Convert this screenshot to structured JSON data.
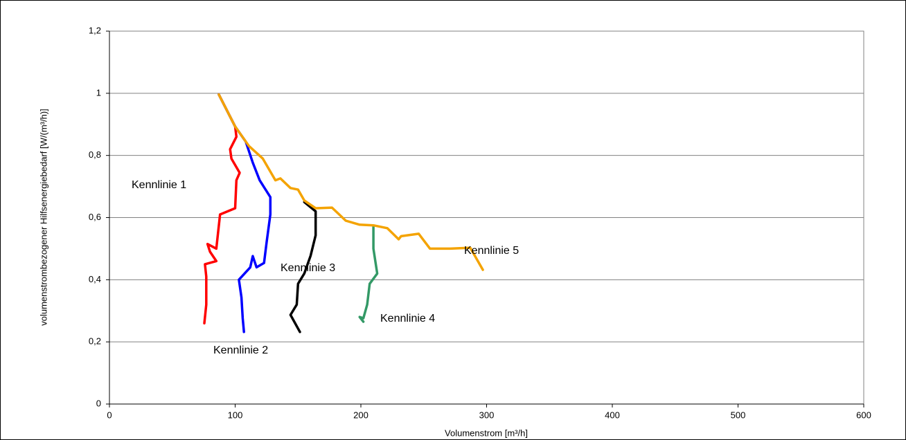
{
  "chart_data": {
    "type": "line",
    "xlabel": "Volumenstrom [m³/h]",
    "ylabel": "volumenstrombezogener Hilfsenergiebedarf [W/(m³/h)]",
    "xlim": [
      0,
      600
    ],
    "xticks": [
      0,
      100,
      200,
      300,
      400,
      500,
      600
    ],
    "ylim": [
      0,
      1.2
    ],
    "yticks": [
      0,
      {
        "value": 0.2,
        "label": "0,2"
      },
      {
        "value": 0.4,
        "label": "0,4"
      },
      {
        "value": 0.6,
        "label": "0,6"
      },
      {
        "value": 0.8,
        "label": "0,8"
      },
      1,
      {
        "value": 1.2,
        "label": "1,2"
      }
    ],
    "grid": true,
    "annotations": [
      "Kennlinie 1",
      "Kennlinie 2",
      "Kennlinie 3",
      "Kennlinie 4",
      "Kennlinie 5"
    ],
    "series": [
      {
        "name": "Kennlinie 1",
        "color": "#ff0000",
        "x": [
          87,
          100,
          101,
          96,
          97,
          103.6,
          101,
          100,
          88,
          85,
          78,
          80,
          85,
          76,
          77,
          77,
          75.5
        ],
        "values": [
          0.996,
          0.893,
          0.86,
          0.82,
          0.79,
          0.744,
          0.72,
          0.63,
          0.61,
          0.5,
          0.515,
          0.49,
          0.46,
          0.45,
          0.41,
          0.32,
          0.26
        ]
      },
      {
        "name": "Kennlinie 2",
        "color": "#0000ff",
        "x": [
          87,
          100,
          108.5,
          114,
          119.5,
          128,
          128,
          125,
          123,
          117,
          114,
          112,
          103,
          105,
          106,
          107
        ],
        "values": [
          0.996,
          0.893,
          0.844,
          0.777,
          0.72,
          0.666,
          0.61,
          0.52,
          0.454,
          0.44,
          0.476,
          0.44,
          0.4,
          0.343,
          0.276,
          0.232
        ]
      },
      {
        "name": "Kennlinie 3",
        "color": "#000000",
        "x": [
          155,
          164,
          164,
          160,
          155,
          150,
          149,
          144,
          151.5
        ],
        "values": [
          0.65,
          0.62,
          0.543,
          0.477,
          0.42,
          0.387,
          0.32,
          0.287,
          0.232
        ]
      },
      {
        "name": "Kennlinie 4",
        "color": "#339966",
        "x": [
          210,
          210,
          213,
          207,
          205,
          202,
          199,
          202
        ],
        "values": [
          0.57,
          0.5,
          0.42,
          0.387,
          0.32,
          0.276,
          0.28,
          0.265
        ]
      },
      {
        "name": "Kennlinie 5",
        "color": "#f4a300",
        "x": [
          87,
          100,
          111,
          122,
          132,
          136,
          144,
          150,
          155,
          164,
          177,
          188,
          199,
          210,
          221,
          230,
          232,
          246,
          255,
          271,
          287,
          297
        ],
        "values": [
          0.996,
          0.893,
          0.83,
          0.79,
          0.72,
          0.726,
          0.695,
          0.69,
          0.655,
          0.63,
          0.632,
          0.59,
          0.577,
          0.575,
          0.566,
          0.53,
          0.54,
          0.548,
          0.5,
          0.5,
          0.503,
          0.432
        ]
      }
    ]
  }
}
